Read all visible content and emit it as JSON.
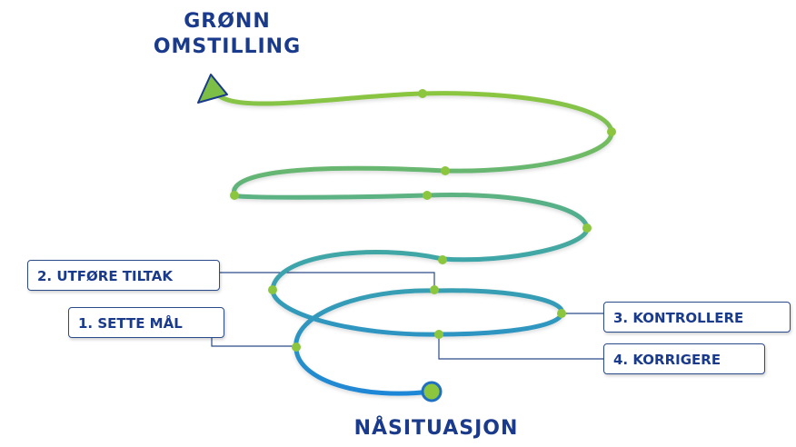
{
  "title": {
    "line1": "GRØNN",
    "line2": "OMSTILLING"
  },
  "start_label": "NÅSITUASJON",
  "steps": [
    {
      "label": "1. SETTE MÅL"
    },
    {
      "label": "2. UTFØRE TILTAK"
    },
    {
      "label": "3. KONTROLLERE"
    },
    {
      "label": "4. KORRIGERE"
    }
  ],
  "colors": {
    "heading": "#1a3a8c",
    "spiral_start": "#1f87d6",
    "spiral_end": "#8cc63f",
    "node": "#8cc63f",
    "box_border": "#2a4a8a"
  }
}
